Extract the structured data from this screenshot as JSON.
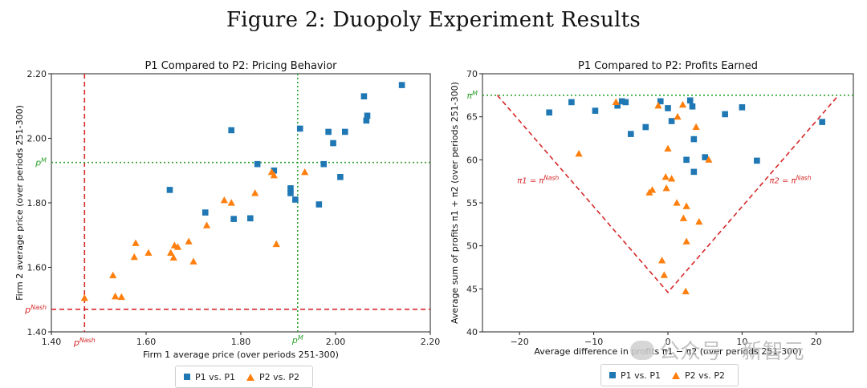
{
  "figure": {
    "title": "Figure 2: Duopoly Experiment Results",
    "watermark": "公众号 · 新智元"
  },
  "colors": {
    "p1": "#1f77b4",
    "p2": "#ff7f0e",
    "nash": "#d62728",
    "monopoly": "#2ca02c"
  },
  "chart_data": [
    {
      "type": "scatter",
      "title": "P1 Compared to P2: Pricing Behavior",
      "xlabel": "Firm 1 average price (over periods 251-300)",
      "ylabel": "Firm 2 average price (over periods 251-300)",
      "xlim": [
        1.4,
        2.2
      ],
      "ylim": [
        1.4,
        2.2
      ],
      "xticks": [
        "1.40",
        "1.60",
        "1.80",
        "2.00",
        "2.20"
      ],
      "yticks": [
        "1.40",
        "1.60",
        "1.80",
        "2.00",
        "2.20"
      ],
      "reference_lines": {
        "nash_x": 1.47,
        "nash_y": 1.47,
        "monopoly_x": 1.92,
        "monopoly_y": 1.925,
        "nash_label_x": "p^Nash",
        "nash_label_y": "p^Nash",
        "monopoly_label_x": "p^M",
        "monopoly_label_y": "p^M"
      },
      "series": [
        {
          "name": "P1 vs. P1",
          "marker": "square",
          "points": [
            [
              1.65,
              1.84
            ],
            [
              1.725,
              1.77
            ],
            [
              1.78,
              2.025
            ],
            [
              1.785,
              1.75
            ],
            [
              1.82,
              1.752
            ],
            [
              1.835,
              1.92
            ],
            [
              1.87,
              1.9
            ],
            [
              1.905,
              1.845
            ],
            [
              1.905,
              1.83
            ],
            [
              1.915,
              1.81
            ],
            [
              1.925,
              2.03
            ],
            [
              1.965,
              1.795
            ],
            [
              1.975,
              1.92
            ],
            [
              1.985,
              2.02
            ],
            [
              1.995,
              1.985
            ],
            [
              2.01,
              1.88
            ],
            [
              2.02,
              2.02
            ],
            [
              2.06,
              2.13
            ],
            [
              2.065,
              2.055
            ],
            [
              2.067,
              2.07
            ],
            [
              2.14,
              2.165
            ]
          ]
        },
        {
          "name": "P2 vs. P2",
          "marker": "triangle",
          "points": [
            [
              1.47,
              1.505
            ],
            [
              1.53,
              1.575
            ],
            [
              1.535,
              1.51
            ],
            [
              1.548,
              1.508
            ],
            [
              1.575,
              1.632
            ],
            [
              1.578,
              1.675
            ],
            [
              1.605,
              1.645
            ],
            [
              1.652,
              1.645
            ],
            [
              1.658,
              1.63
            ],
            [
              1.66,
              1.668
            ],
            [
              1.667,
              1.663
            ],
            [
              1.69,
              1.68
            ],
            [
              1.7,
              1.618
            ],
            [
              1.728,
              1.73
            ],
            [
              1.765,
              1.808
            ],
            [
              1.78,
              1.8
            ],
            [
              1.83,
              1.83
            ],
            [
              1.865,
              1.895
            ],
            [
              1.87,
              1.885
            ],
            [
              1.875,
              1.672
            ],
            [
              1.935,
              1.895
            ]
          ]
        }
      ],
      "legend": "bottom-center"
    },
    {
      "type": "scatter",
      "title": "P1 Compared to P2: Profits Earned",
      "xlabel": "Average difference in profits π1 − π2 (over periods 251-300)",
      "ylabel": "Average sum of profits π1 + π2 (over periods 251-300)",
      "xlim": [
        -25,
        25
      ],
      "ylim": [
        40,
        70
      ],
      "xticks": [
        "−20",
        "−10",
        "0",
        "10",
        "20"
      ],
      "yticks": [
        "40",
        "45",
        "50",
        "55",
        "60",
        "65",
        "70"
      ],
      "reference_lines": {
        "monopoly_y": 67.5,
        "monopoly_label": "π^M",
        "nash_vertex": [
          0,
          44.6
        ],
        "nash_left_end": [
          -23,
          67.5
        ],
        "nash_right_end": [
          23,
          67.5
        ],
        "left_label": "π1 = π^Nash",
        "right_label": "π2 = π^Nash"
      },
      "series": [
        {
          "name": "P1 vs. P1",
          "marker": "square",
          "points": [
            [
              -16,
              65.5
            ],
            [
              -13,
              66.7
            ],
            [
              -9.8,
              65.7
            ],
            [
              -6.8,
              66.3
            ],
            [
              -6.2,
              66.8
            ],
            [
              -5.7,
              66.7
            ],
            [
              -5,
              63
            ],
            [
              -3,
              63.8
            ],
            [
              -1,
              66.8
            ],
            [
              0,
              66
            ],
            [
              0.5,
              64.5
            ],
            [
              2.5,
              60
            ],
            [
              3,
              66.9
            ],
            [
              3.3,
              66.2
            ],
            [
              3.5,
              62.4
            ],
            [
              3.5,
              58.6
            ],
            [
              5,
              60.3
            ],
            [
              7.7,
              65.3
            ],
            [
              10,
              66.1
            ],
            [
              12,
              59.9
            ],
            [
              20.8,
              64.4
            ]
          ]
        },
        {
          "name": "P2 vs. P2",
          "marker": "triangle",
          "points": [
            [
              -12,
              60.7
            ],
            [
              -7,
              66.7
            ],
            [
              -1.3,
              66.3
            ],
            [
              1.3,
              65
            ],
            [
              2,
              66.4
            ],
            [
              0,
              61.3
            ],
            [
              3.8,
              63.8
            ],
            [
              5.5,
              60
            ],
            [
              -0.3,
              58
            ],
            [
              0.5,
              57.8
            ],
            [
              -2.5,
              56.2
            ],
            [
              -2.1,
              56.5
            ],
            [
              -0.2,
              56.7
            ],
            [
              1.2,
              55
            ],
            [
              2.5,
              54.6
            ],
            [
              2.1,
              53.2
            ],
            [
              4.2,
              52.8
            ],
            [
              2.5,
              50.5
            ],
            [
              -0.8,
              48.3
            ],
            [
              -0.5,
              46.6
            ],
            [
              2.4,
              44.7
            ]
          ]
        }
      ],
      "legend": "bottom-center"
    }
  ],
  "legend": {
    "left": {
      "p1_label": "P1 vs. P1",
      "p2_label": "P2 vs. P2"
    },
    "right": {
      "p1_label": "P1 vs. P1",
      "p2_label": "P2 vs. P2"
    }
  }
}
